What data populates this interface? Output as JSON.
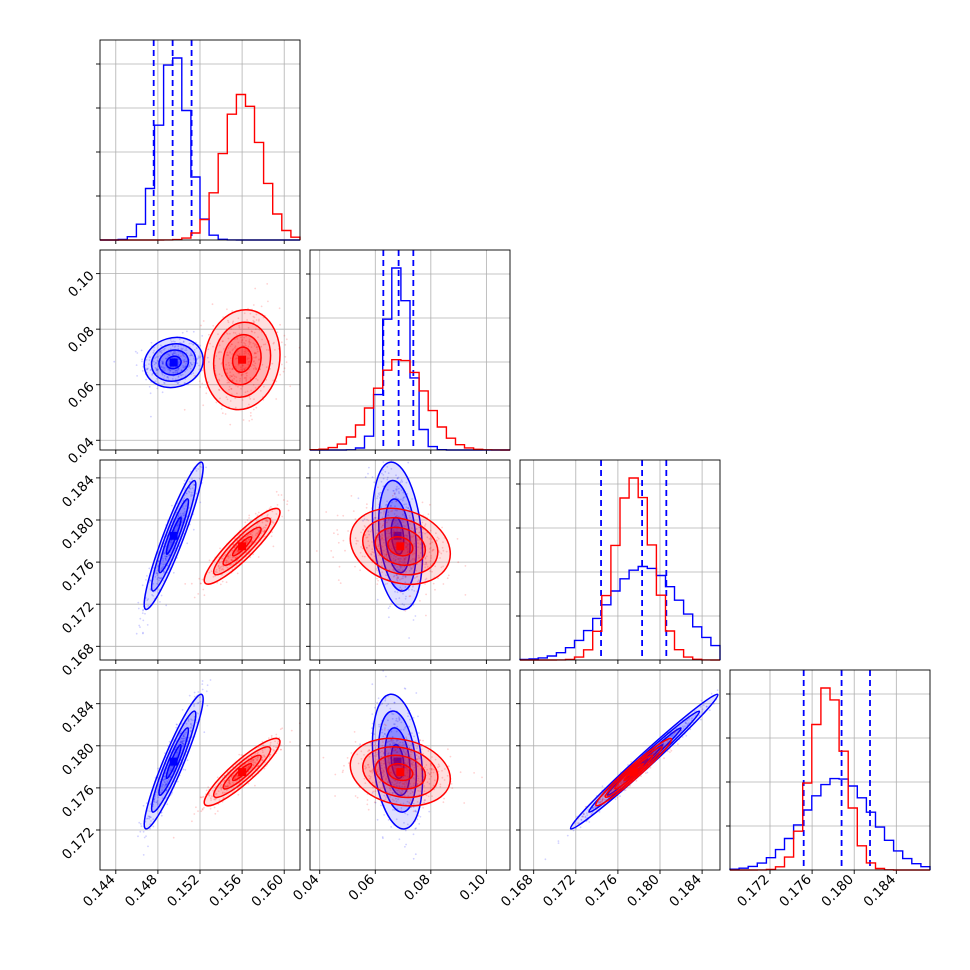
{
  "chart_data": {
    "type": "corner",
    "grid": true,
    "series": [
      {
        "color": "#0000ff",
        "params": [
          {
            "mean": 0.1495,
            "sd": 0.0014,
            "quantiles": [
              0.1476,
              0.1494,
              0.1512
            ]
          },
          {
            "mean": 0.068,
            "sd": 0.0045,
            "quantiles": [
              0.0629,
              0.0684,
              0.0737
            ]
          },
          {
            "mean": 0.1785,
            "sd": 0.0035,
            "quantiles": [
              0.1744,
              0.1783,
              0.1806
            ]
          },
          {
            "mean": 0.1785,
            "sd": 0.0032,
            "quantiles": [
              0.1752,
              0.1788,
              0.1815
            ]
          }
        ],
        "corr": {
          "1,0": 0.1,
          "2,0": 0.93,
          "2,1": -0.25,
          "3,0": 0.93,
          "3,1": -0.25,
          "3,2": 0.99
        }
      },
      {
        "color": "#ff0000",
        "params": [
          {
            "mean": 0.156,
            "sd": 0.0018
          },
          {
            "mean": 0.069,
            "sd": 0.009
          },
          {
            "mean": 0.1775,
            "sd": 0.0018
          },
          {
            "mean": 0.1775,
            "sd": 0.0016
          }
        ],
        "corr": {
          "1,0": 0.1,
          "2,0": 0.9,
          "2,1": -0.2,
          "3,0": 0.9,
          "3,1": -0.2,
          "3,2": 0.97
        }
      }
    ],
    "axes": [
      {
        "range": [
          0.1425,
          0.1615
        ],
        "ticks": [
          "0.144",
          "0.148",
          "0.152",
          "0.156",
          "0.160"
        ],
        "tick_values": [
          0.144,
          0.148,
          0.152,
          0.156,
          0.16
        ]
      },
      {
        "range": [
          0.0365,
          0.1085
        ],
        "ticks": [
          "0.04",
          "0.06",
          "0.08",
          "0.10"
        ],
        "tick_values": [
          0.04,
          0.06,
          0.08,
          0.1
        ]
      },
      {
        "range": [
          0.1667,
          0.1857
        ],
        "ticks": [
          "0.168",
          "0.172",
          "0.176",
          "0.180",
          "0.184"
        ],
        "tick_values": [
          0.168,
          0.172,
          0.176,
          0.18,
          0.184
        ]
      },
      {
        "range": [
          0.1682,
          0.1872
        ],
        "ticks": [
          "0.172",
          "0.176",
          "0.180",
          "0.184"
        ],
        "tick_values": [
          0.172,
          0.176,
          0.18,
          0.184
        ]
      }
    ],
    "left_axis_ticks": {
      "1": [
        "0.04",
        "0.06",
        "0.08",
        "0.10"
      ],
      "2": [
        "0.168",
        "0.172",
        "0.176",
        "0.180",
        "0.184"
      ],
      "3": [
        "0.172",
        "0.176",
        "0.180",
        "0.184"
      ]
    }
  }
}
